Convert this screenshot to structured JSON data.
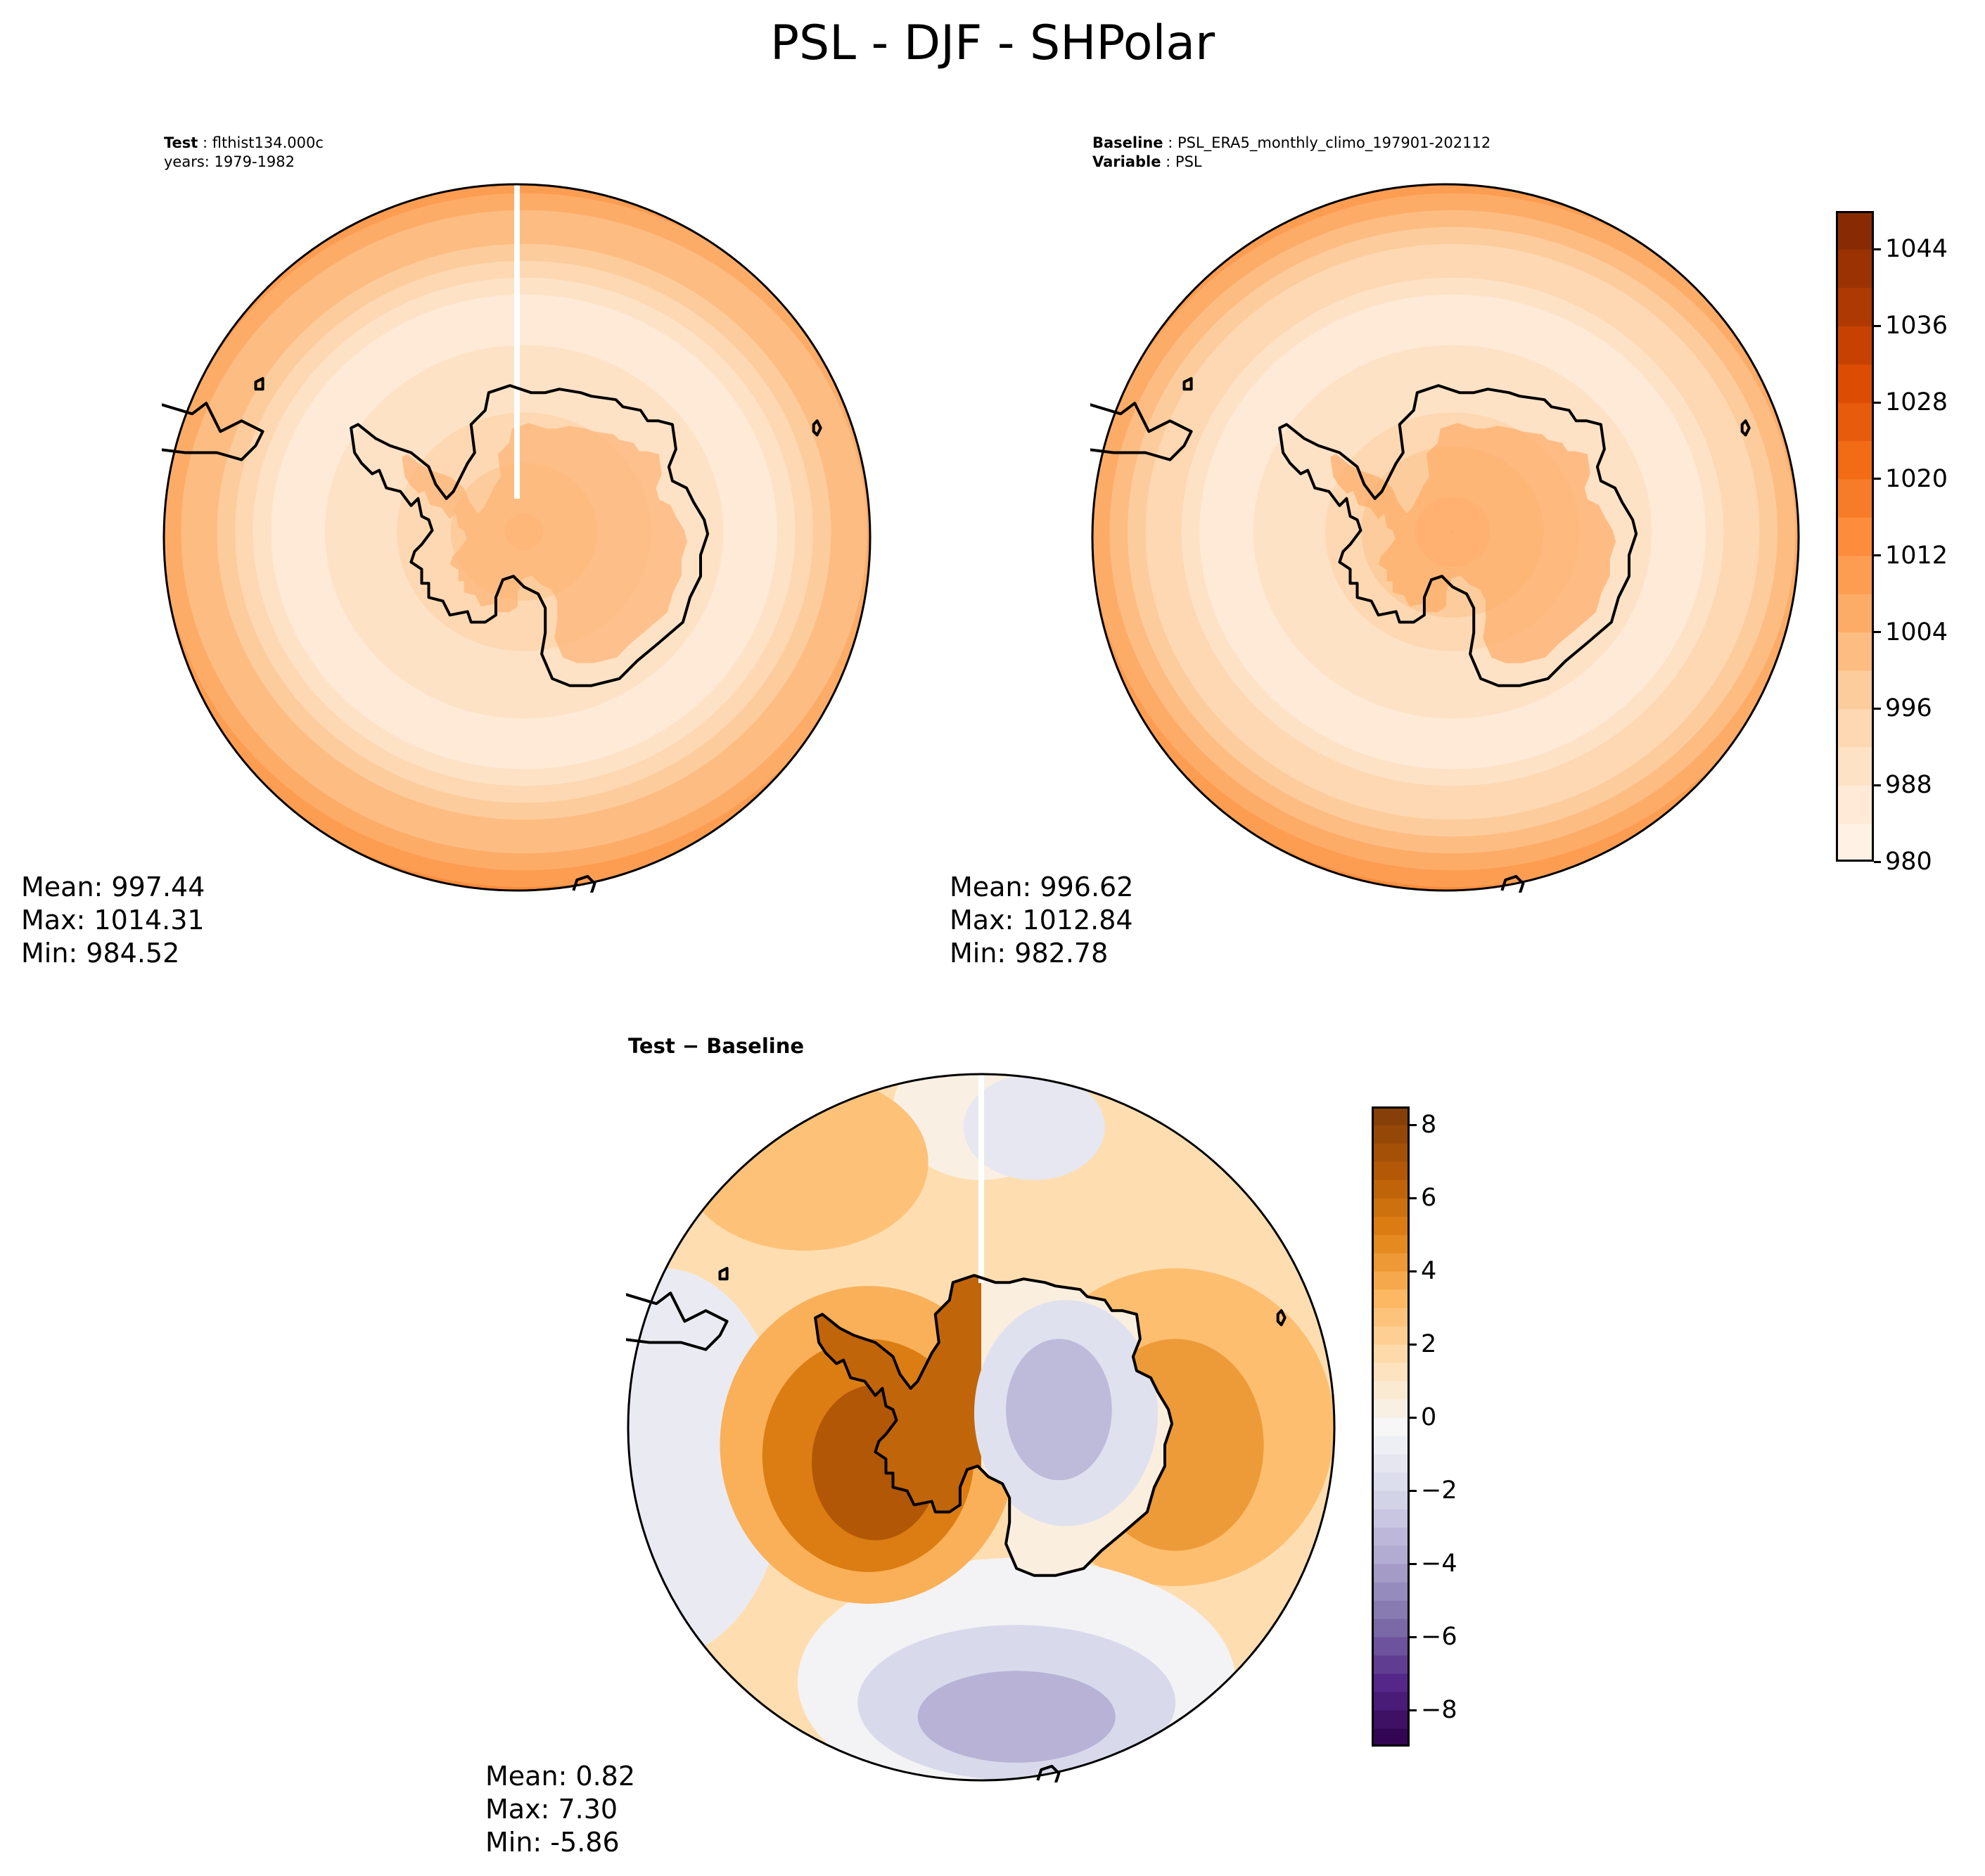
{
  "figure": {
    "title": "PSL - DJF - SHPolar"
  },
  "chart_data": [
    {
      "type": "heatmap",
      "projection": "south-polar-stereographic",
      "header": {
        "label": "Test",
        "value": "flthist134.000c",
        "line2": "years: 1979-1982"
      },
      "stats": {
        "mean": "Mean: 997.44",
        "max": "Max: 1014.31",
        "min": "Min: 984.52"
      },
      "mean": 997.44,
      "max": 1014.31,
      "min": 984.52,
      "colormap": "Oranges",
      "field": {
        "pole_value": 1003,
        "trough_value": 986,
        "edge_value": 1013
      }
    },
    {
      "type": "heatmap",
      "projection": "south-polar-stereographic",
      "header": {
        "label": "Baseline",
        "value": "PSL_ERA5_monthly_climo_197901-202112",
        "label2": "Variable",
        "value2": "PSL"
      },
      "stats": {
        "mean": "Mean: 996.62",
        "max": "Max: 1012.84",
        "min": "Min: 982.78"
      },
      "mean": 996.62,
      "max": 1012.84,
      "min": 982.78,
      "colormap": "Oranges",
      "field": {
        "pole_value": 1005,
        "trough_value": 985,
        "edge_value": 1012
      },
      "colorbar": {
        "range": [
          980,
          1048
        ],
        "ticks": [
          980,
          988,
          996,
          1004,
          1012,
          1020,
          1028,
          1036,
          1044
        ],
        "tick_labels": [
          "980",
          "988",
          "996",
          "1004",
          "1012",
          "1020",
          "1028",
          "1036",
          "1044"
        ],
        "levels": 17
      }
    },
    {
      "type": "heatmap",
      "projection": "south-polar-stereographic",
      "title": "Test − Baseline",
      "stats": {
        "mean": "Mean:  0.82",
        "max": "Max:  7.30",
        "min": "Min: -5.86"
      },
      "mean": 0.82,
      "max": 7.3,
      "min": -5.86,
      "colormap": "PuOr_r",
      "colorbar": {
        "range": [
          -9,
          8.5
        ],
        "ticks": [
          -8,
          -6,
          -4,
          -2,
          0,
          2,
          4,
          6,
          8
        ],
        "tick_labels": [
          "−8",
          "−6",
          "−4",
          "−2",
          "0",
          "2",
          "4",
          "6",
          "8"
        ],
        "levels": 35
      }
    }
  ]
}
